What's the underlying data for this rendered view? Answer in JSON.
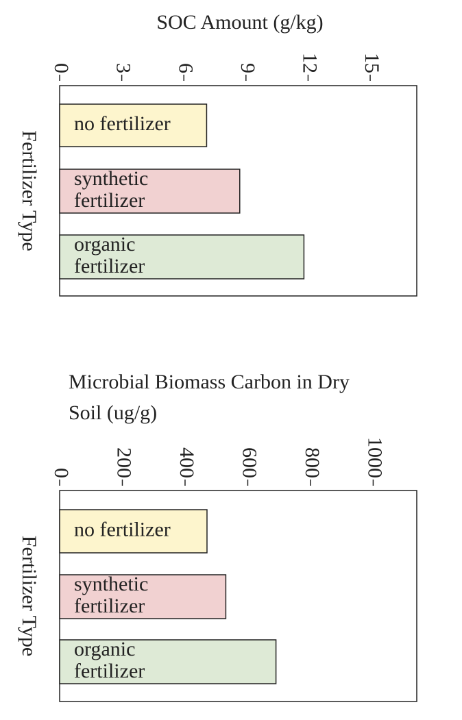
{
  "chart_data": [
    {
      "type": "bar",
      "title": "SOC Amount  (g/kg)",
      "y_label": "Fertilizer Type",
      "categories": [
        "no fertilizer",
        "synthetic fertilizer",
        "organic fertilizer"
      ],
      "values": [
        7.1,
        8.7,
        11.8
      ],
      "colors": [
        "#fdf5cd",
        "#f1d1d1",
        "#deead6"
      ],
      "xlim": [
        0,
        17.25
      ],
      "xticks": [
        0,
        3,
        6,
        9,
        12,
        15
      ]
    },
    {
      "type": "bar",
      "title": "Microbial Biomass Carbon in Dry Soil (ug/g)",
      "y_label": "Fertilizer Type",
      "categories": [
        "no fertilizer",
        "synthetic fertilizer",
        "organic fertilizer"
      ],
      "values": [
        470,
        530,
        690
      ],
      "colors": [
        "#fdf5cd",
        "#f1d1d1",
        "#deead6"
      ],
      "xlim": [
        0,
        1139
      ],
      "xticks": [
        0,
        200,
        400,
        600,
        800,
        1000
      ]
    }
  ]
}
